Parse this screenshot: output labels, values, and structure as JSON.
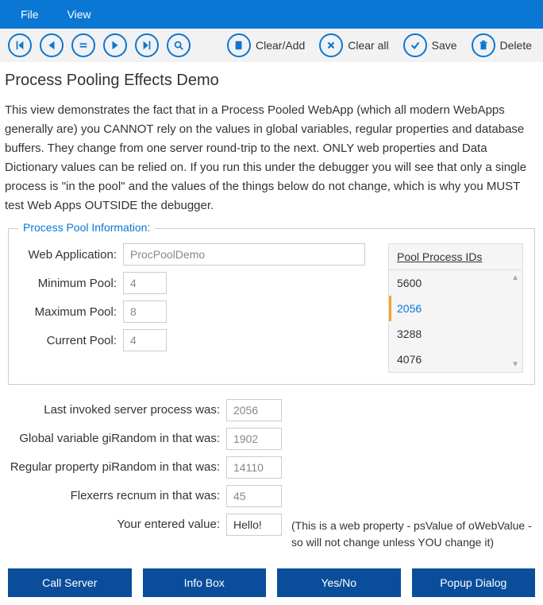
{
  "colors": {
    "menubar_bg": "#0a77d5",
    "toolbar_bg": "#f2f2f2",
    "accent": "#0a77d5",
    "button_bg": "#0a4e9b",
    "highlight_border": "#f5a623",
    "text": "#333333",
    "muted": "#888888",
    "border": "#cccccc"
  },
  "menubar": {
    "file": "File",
    "view": "View"
  },
  "toolbar": {
    "clear_add": "Clear/Add",
    "clear_all": "Clear all",
    "save": "Save",
    "delete": "Delete"
  },
  "page": {
    "title": "Process Pooling Effects Demo",
    "description": "This view demonstrates the fact that in a Process Pooled WebApp (which all modern WebApps generally are) you CANNOT rely on the values in global variables, regular properties and database buffers. They change from one server round-trip to the next. ONLY web properties and Data Dictionary values can be relied on. If you run this under the debugger you will see that only a single process is \"in the pool\" and the values of the things below do not change, which is why you MUST test Web Apps OUTSIDE the debugger."
  },
  "pool_info": {
    "legend": "Process Pool Information:",
    "web_app_label": "Web Application:",
    "web_app_value": "ProcPoolDemo",
    "min_pool_label": "Minimum Pool:",
    "min_pool_value": "4",
    "max_pool_label": "Maximum Pool:",
    "max_pool_value": "8",
    "cur_pool_label": "Current Pool:",
    "cur_pool_value": "4",
    "pid_header": "Pool Process IDs",
    "pids": [
      "5600",
      "2056",
      "3288",
      "4076"
    ],
    "selected_index": 1
  },
  "status": {
    "last_invoked_label": "Last invoked server process was:",
    "last_invoked_value": "2056",
    "gi_random_label": "Global variable giRandom in that was:",
    "gi_random_value": "1902",
    "pi_random_label": "Regular property piRandom in that was:",
    "pi_random_value": "14110",
    "flexerrs_label": "Flexerrs recnum in that was:",
    "flexerrs_value": "45",
    "entered_label": "Your entered value:",
    "entered_value": "Hello!",
    "entered_note": "(This is a web property - psValue of oWebValue - so will not change unless YOU change it)"
  },
  "buttons": {
    "call_server": "Call Server",
    "info_box": "Info Box",
    "yes_no": "Yes/No",
    "popup_dialog": "Popup Dialog"
  }
}
